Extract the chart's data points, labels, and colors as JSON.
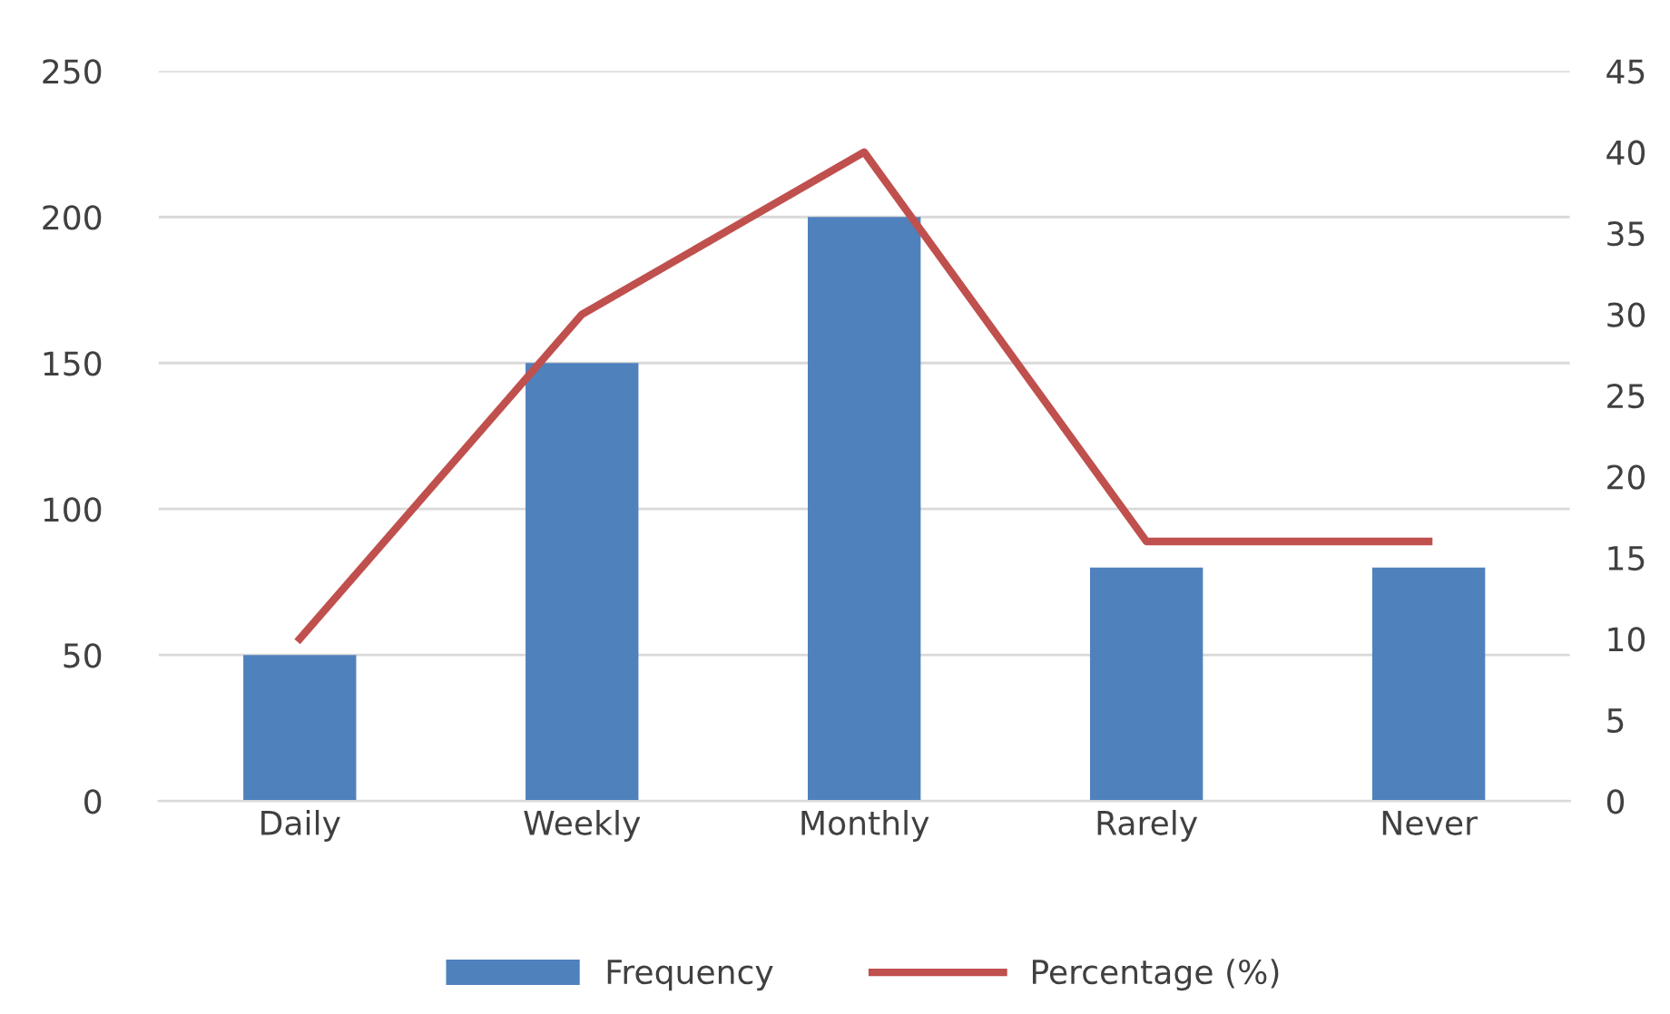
{
  "chart_data": {
    "type": "bar",
    "categories": [
      "Daily",
      "Weekly",
      "Monthly",
      "Rarely",
      "Never"
    ],
    "series": [
      {
        "name": "Frequency",
        "color": "#4f81bd",
        "values": [
          50,
          150,
          200,
          80,
          80
        ]
      },
      {
        "name": "Percentage (%)",
        "type": "line",
        "axis": "y2",
        "color": "#c0504d",
        "values": [
          10,
          30,
          40,
          16,
          16
        ]
      }
    ],
    "ylim": [
      0,
      250
    ],
    "yticks": [
      0,
      50,
      100,
      150,
      200,
      250
    ],
    "y2lim": [
      0,
      45
    ],
    "y2ticks": [
      0,
      5,
      10,
      15,
      20,
      25,
      30,
      35,
      40,
      45
    ],
    "grid": "y",
    "legend": "bottom",
    "marker": "none",
    "line_style": "solid"
  }
}
